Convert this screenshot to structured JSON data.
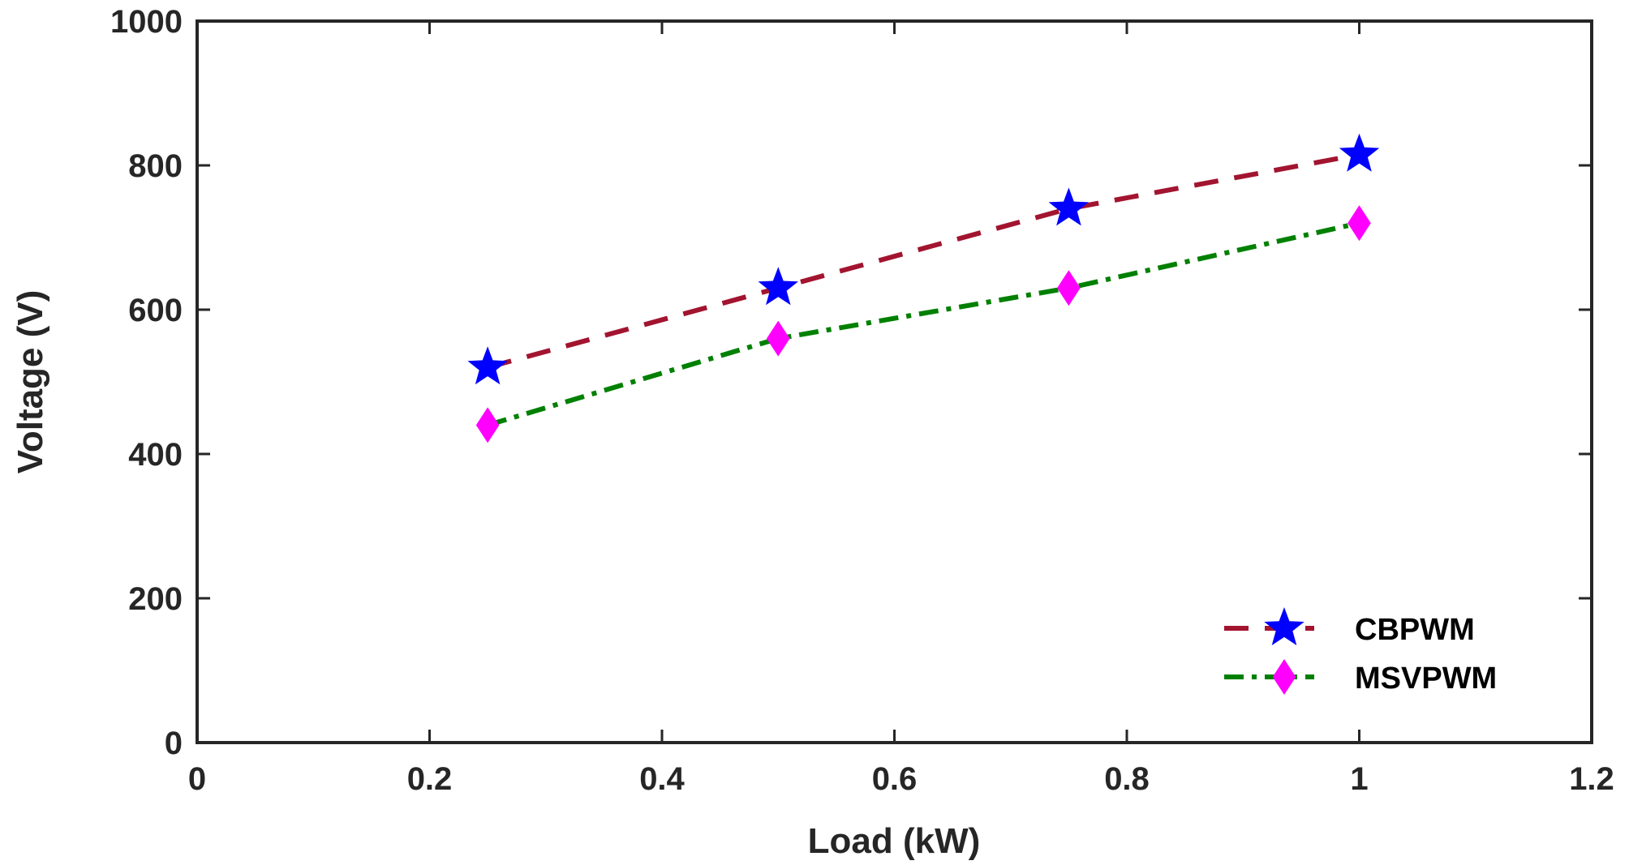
{
  "chart_data": {
    "type": "line",
    "title": "",
    "xlabel": "Load (kW)",
    "ylabel": "Voltage (V)",
    "xlim": [
      0,
      1.2
    ],
    "ylim": [
      0,
      1000
    ],
    "xticks": [
      "0",
      "0.2",
      "0.4",
      "0.6",
      "0.8",
      "1",
      "1.2"
    ],
    "yticks": [
      "0",
      "200",
      "400",
      "600",
      "800",
      "1000"
    ],
    "grid": false,
    "legend_position": "bottom-right",
    "x": [
      0.25,
      0.5,
      0.75,
      1.0
    ],
    "series": [
      {
        "name": "CBPWM",
        "values": [
          520,
          630,
          740,
          815
        ],
        "line_color": "#a2142f",
        "line_style": "dashed",
        "marker": "star",
        "marker_color": "#0000ff"
      },
      {
        "name": "MSVPWM",
        "values": [
          440,
          560,
          630,
          720
        ],
        "line_color": "#008000",
        "line_style": "dash-dot",
        "marker": "diamond",
        "marker_color": "#ff00ff"
      }
    ]
  }
}
